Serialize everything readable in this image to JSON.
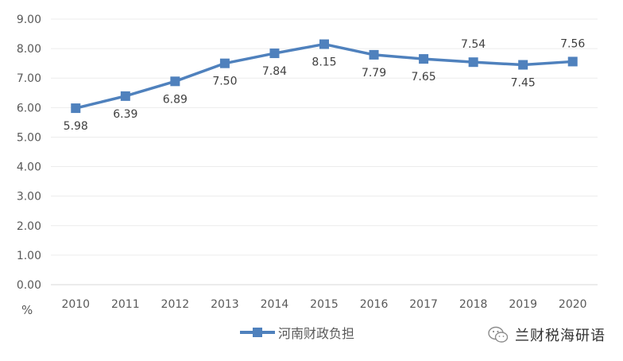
{
  "chart_data": {
    "type": "line",
    "categories": [
      "2010",
      "2011",
      "2012",
      "2013",
      "2014",
      "2015",
      "2016",
      "2017",
      "2018",
      "2019",
      "2020"
    ],
    "series": [
      {
        "name": "河南财政负担",
        "values": [
          5.98,
          6.39,
          6.89,
          7.5,
          7.84,
          8.15,
          7.79,
          7.65,
          7.54,
          7.45,
          7.56
        ],
        "data_labels": [
          "5.98",
          "6.39",
          "6.89",
          "7.50",
          "7.84",
          "8.15",
          "7.79",
          "7.65",
          "7.54",
          "7.45",
          "7.56"
        ],
        "label_position": [
          "below",
          "below",
          "below",
          "below",
          "below",
          "below",
          "below",
          "below",
          "above",
          "below",
          "above"
        ]
      }
    ],
    "ylim": [
      0,
      9
    ],
    "yticks": [
      0,
      1,
      2,
      3,
      4,
      5,
      6,
      7,
      8,
      9
    ],
    "ytick_labels": [
      "0.00",
      "1.00",
      "2.00",
      "3.00",
      "4.00",
      "5.00",
      "6.00",
      "7.00",
      "8.00",
      "9.00"
    ],
    "ylabel": "%",
    "grid": true,
    "legend_position": "bottom",
    "colors": {
      "series": "#4f81bd",
      "grid": "#ececec",
      "axis": "#d9d9d9"
    }
  },
  "watermark": {
    "text": "兰财税海研语",
    "icon": "wechat-icon"
  }
}
